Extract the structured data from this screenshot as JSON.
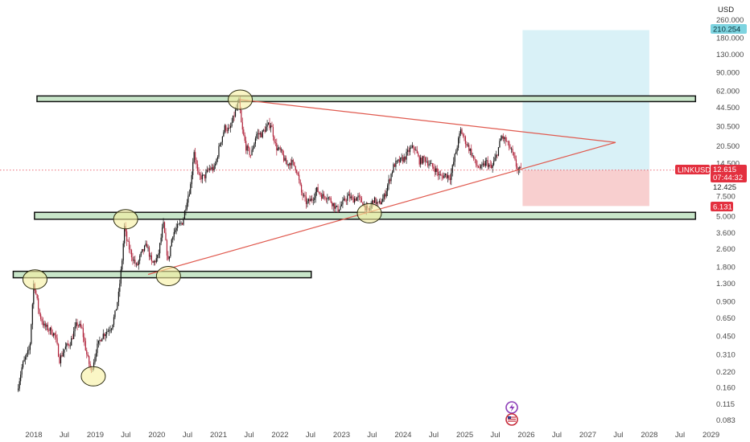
{
  "chart_data": {
    "type": "candlestick",
    "currency": "USD",
    "y_scale": "log",
    "ylim": [
      0.08,
      270
    ],
    "xlim": [
      "2017-09",
      "2028-10"
    ],
    "y_ticks": [
      "260.000",
      "180.000",
      "130.000",
      "90.000",
      "62.000",
      "44.500",
      "30.500",
      "20.500",
      "14.500",
      "7.500",
      "5.000",
      "3.600",
      "2.600",
      "1.800",
      "1.300",
      "0.900",
      "0.650",
      "0.450",
      "0.310",
      "0.220",
      "0.160",
      "0.115",
      "0.083"
    ],
    "x_ticks": [
      {
        "label": "2018",
        "date": "2018-01-01"
      },
      {
        "label": "Jul",
        "date": "2018-07-01"
      },
      {
        "label": "2019",
        "date": "2019-01-01"
      },
      {
        "label": "Jul",
        "date": "2019-07-01"
      },
      {
        "label": "2020",
        "date": "2020-01-01"
      },
      {
        "label": "Jul",
        "date": "2020-07-01"
      },
      {
        "label": "2021",
        "date": "2021-01-01"
      },
      {
        "label": "Jul",
        "date": "2021-07-01"
      },
      {
        "label": "2022",
        "date": "2022-01-01"
      },
      {
        "label": "Jul",
        "date": "2022-07-01"
      },
      {
        "label": "2023",
        "date": "2023-01-01"
      },
      {
        "label": "Jul",
        "date": "2023-07-01"
      },
      {
        "label": "2024",
        "date": "2024-01-01"
      },
      {
        "label": "Jul",
        "date": "2024-07-01"
      },
      {
        "label": "2025",
        "date": "2025-01-01"
      },
      {
        "label": "Jul",
        "date": "2025-07-01"
      },
      {
        "label": "2026",
        "date": "2026-01-01"
      },
      {
        "label": "Jul",
        "date": "2026-07-01"
      },
      {
        "label": "2027",
        "date": "2027-01-01"
      },
      {
        "label": "Jul",
        "date": "2027-07-01"
      },
      {
        "label": "2028",
        "date": "2028-01-01"
      },
      {
        "label": "Jul",
        "date": "2028-07-01"
      },
      {
        "label": "2029",
        "date": "2029-01-01"
      }
    ],
    "price_anchors": [
      {
        "date": "2017-10-01",
        "price": 0.15
      },
      {
        "date": "2017-11-01",
        "price": 0.25
      },
      {
        "date": "2017-12-15",
        "price": 0.35
      },
      {
        "date": "2018-01-08",
        "price": 1.35
      },
      {
        "date": "2018-02-10",
        "price": 0.7
      },
      {
        "date": "2018-03-10",
        "price": 0.55
      },
      {
        "date": "2018-04-20",
        "price": 0.5
      },
      {
        "date": "2018-05-15",
        "price": 0.45
      },
      {
        "date": "2018-06-10",
        "price": 0.28
      },
      {
        "date": "2018-07-10",
        "price": 0.35
      },
      {
        "date": "2018-08-15",
        "price": 0.4
      },
      {
        "date": "2018-09-20",
        "price": 0.58
      },
      {
        "date": "2018-10-20",
        "price": 0.52
      },
      {
        "date": "2018-11-20",
        "price": 0.3
      },
      {
        "date": "2018-12-15",
        "price": 0.22
      },
      {
        "date": "2019-01-15",
        "price": 0.35
      },
      {
        "date": "2019-02-15",
        "price": 0.45
      },
      {
        "date": "2019-03-20",
        "price": 0.5
      },
      {
        "date": "2019-04-15",
        "price": 0.55
      },
      {
        "date": "2019-05-05",
        "price": 0.7
      },
      {
        "date": "2019-05-25",
        "price": 1.0
      },
      {
        "date": "2019-06-15",
        "price": 2.0
      },
      {
        "date": "2019-06-30",
        "price": 4.0
      },
      {
        "date": "2019-07-15",
        "price": 3.0
      },
      {
        "date": "2019-08-10",
        "price": 2.3
      },
      {
        "date": "2019-09-10",
        "price": 1.8
      },
      {
        "date": "2019-10-10",
        "price": 2.4
      },
      {
        "date": "2019-11-10",
        "price": 2.8
      },
      {
        "date": "2019-12-10",
        "price": 1.9
      },
      {
        "date": "2020-01-15",
        "price": 2.2
      },
      {
        "date": "2020-02-15",
        "price": 4.3
      },
      {
        "date": "2020-03-15",
        "price": 2.0
      },
      {
        "date": "2020-04-10",
        "price": 3.5
      },
      {
        "date": "2020-05-10",
        "price": 4.0
      },
      {
        "date": "2020-06-10",
        "price": 4.5
      },
      {
        "date": "2020-07-05",
        "price": 7.0
      },
      {
        "date": "2020-07-25",
        "price": 9.0
      },
      {
        "date": "2020-08-15",
        "price": 19.0
      },
      {
        "date": "2020-09-10",
        "price": 11.0
      },
      {
        "date": "2020-10-15",
        "price": 11.0
      },
      {
        "date": "2020-11-15",
        "price": 13.0
      },
      {
        "date": "2020-12-15",
        "price": 13.0
      },
      {
        "date": "2021-01-15",
        "price": 21.0
      },
      {
        "date": "2021-02-15",
        "price": 30.0
      },
      {
        "date": "2021-03-15",
        "price": 28.0
      },
      {
        "date": "2021-04-15",
        "price": 40.0
      },
      {
        "date": "2021-05-10",
        "price": 50.0
      },
      {
        "date": "2021-05-25",
        "price": 30.0
      },
      {
        "date": "2021-06-20",
        "price": 20.0
      },
      {
        "date": "2021-07-20",
        "price": 17.0
      },
      {
        "date": "2021-08-20",
        "price": 26.0
      },
      {
        "date": "2021-09-20",
        "price": 26.0
      },
      {
        "date": "2021-10-20",
        "price": 30.0
      },
      {
        "date": "2021-11-15",
        "price": 32.0
      },
      {
        "date": "2021-12-15",
        "price": 20.0
      },
      {
        "date": "2022-01-15",
        "price": 18.0
      },
      {
        "date": "2022-02-15",
        "price": 14.0
      },
      {
        "date": "2022-03-15",
        "price": 15.0
      },
      {
        "date": "2022-04-15",
        "price": 13.0
      },
      {
        "date": "2022-05-15",
        "price": 8.0
      },
      {
        "date": "2022-06-15",
        "price": 6.5
      },
      {
        "date": "2022-07-15",
        "price": 7.0
      },
      {
        "date": "2022-08-15",
        "price": 8.5
      },
      {
        "date": "2022-09-15",
        "price": 7.5
      },
      {
        "date": "2022-10-15",
        "price": 7.5
      },
      {
        "date": "2022-11-15",
        "price": 6.5
      },
      {
        "date": "2022-12-15",
        "price": 5.7
      },
      {
        "date": "2023-01-15",
        "price": 6.5
      },
      {
        "date": "2023-02-15",
        "price": 7.5
      },
      {
        "date": "2023-03-15",
        "price": 7.0
      },
      {
        "date": "2023-04-15",
        "price": 7.3
      },
      {
        "date": "2023-05-15",
        "price": 6.5
      },
      {
        "date": "2023-06-15",
        "price": 5.4
      },
      {
        "date": "2023-07-15",
        "price": 7.0
      },
      {
        "date": "2023-08-15",
        "price": 6.3
      },
      {
        "date": "2023-09-15",
        "price": 7.2
      },
      {
        "date": "2023-10-15",
        "price": 10.0
      },
      {
        "date": "2023-11-15",
        "price": 14.0
      },
      {
        "date": "2023-12-15",
        "price": 15.0
      },
      {
        "date": "2024-01-15",
        "price": 16.0
      },
      {
        "date": "2024-02-15",
        "price": 19.0
      },
      {
        "date": "2024-03-15",
        "price": 20.0
      },
      {
        "date": "2024-04-15",
        "price": 15.0
      },
      {
        "date": "2024-05-15",
        "price": 16.0
      },
      {
        "date": "2024-06-15",
        "price": 14.0
      },
      {
        "date": "2024-07-15",
        "price": 13.0
      },
      {
        "date": "2024-08-15",
        "price": 11.0
      },
      {
        "date": "2024-09-15",
        "price": 11.5
      },
      {
        "date": "2024-10-15",
        "price": 11.0
      },
      {
        "date": "2024-11-15",
        "price": 18.0
      },
      {
        "date": "2024-12-15",
        "price": 28.0
      },
      {
        "date": "2025-01-15",
        "price": 22.0
      },
      {
        "date": "2025-02-15",
        "price": 18.0
      },
      {
        "date": "2025-03-15",
        "price": 14.0
      },
      {
        "date": "2025-04-15",
        "price": 13.0
      },
      {
        "date": "2025-05-15",
        "price": 15.0
      },
      {
        "date": "2025-06-15",
        "price": 13.0
      },
      {
        "date": "2025-07-15",
        "price": 17.0
      },
      {
        "date": "2025-08-15",
        "price": 25.0
      },
      {
        "date": "2025-09-15",
        "price": 22.0
      },
      {
        "date": "2025-10-15",
        "price": 18.0
      },
      {
        "date": "2025-11-15",
        "price": 13.0
      },
      {
        "date": "2025-12-01",
        "price": 12.6
      }
    ],
    "zones": [
      {
        "name": "upper-resistance",
        "x1": "2018-01-20",
        "x2": "2028-10",
        "y_low": 50,
        "y_high": 56
      },
      {
        "name": "mid-support",
        "x1": "2018-01-05",
        "x2": "2028-10",
        "y_low": 4.7,
        "y_high": 5.4
      },
      {
        "name": "lower-support",
        "x1": "2017-09",
        "x2": "2022-07-05",
        "y_low": 1.45,
        "y_high": 1.65
      }
    ],
    "trendlines": [
      {
        "name": "descending-resistance",
        "x1": "2021-05-10",
        "y1": 52,
        "x2": "2027-06-15",
        "y2": 22
      },
      {
        "name": "ascending-support",
        "x1": "2019-11-10",
        "y1": 1.55,
        "x2": "2027-06-15",
        "y2": 22
      }
    ],
    "highlight_ellipses": [
      {
        "date": "2018-01-08",
        "price": 1.4
      },
      {
        "date": "2018-12-20",
        "price": 0.2
      },
      {
        "date": "2019-06-30",
        "price": 4.7
      },
      {
        "date": "2020-03-10",
        "price": 1.5
      },
      {
        "date": "2021-05-10",
        "price": 52
      },
      {
        "date": "2023-06-15",
        "price": 5.3
      }
    ],
    "position": {
      "x1": "2025-12-10",
      "x2": "2028-01-01",
      "target": 210.254,
      "entry": 12.615,
      "stop": 6.131
    },
    "current_price_level": 12.615
  },
  "price_tags": {
    "target": "210.254",
    "symbol": "LINKUSD",
    "current": "12.615",
    "countdown": "07:44:32",
    "mid": "12.425",
    "stop": "6.131"
  },
  "icons": [
    "lightning-icon",
    "us-flag-icon"
  ],
  "colors": {
    "up": "#111111",
    "down": "#b0223a",
    "zone_fill": "#c8e6c9",
    "zone_stroke": "#111111",
    "trendline": "#e05a4f",
    "ellipse_fill": "#f6f0a0",
    "ellipse_stroke": "#2c2c10",
    "target_zone": "#d9f1f7",
    "stop_zone": "#f8cfcf",
    "target_tag": "#7ed4e0",
    "price_tag": "#e3303f",
    "price_line": "#e3303f"
  }
}
